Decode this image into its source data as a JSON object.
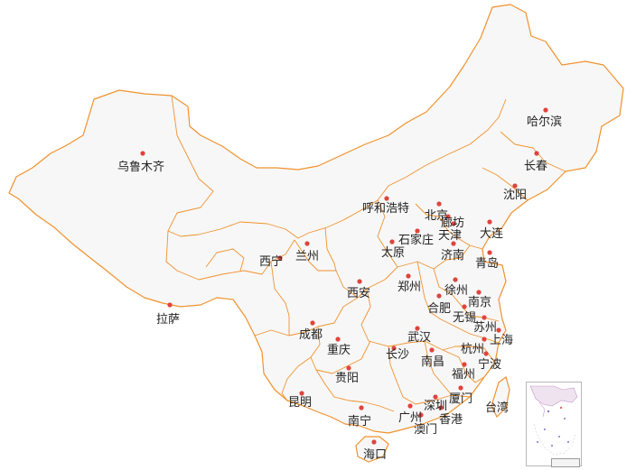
{
  "colors": {
    "land": "#f7f7f7",
    "border": "#f0922e",
    "city_dot": "#e0443e",
    "label": "#222222"
  },
  "cities": [
    {
      "id": "harbin",
      "label": "哈尔滨"
    },
    {
      "id": "changchun",
      "label": "长春"
    },
    {
      "id": "shenyang",
      "label": "沈阳"
    },
    {
      "id": "urumqi",
      "label": "乌鲁木齐"
    },
    {
      "id": "hohhot",
      "label": "呼和浩特"
    },
    {
      "id": "beijing",
      "label": "北京"
    },
    {
      "id": "langfang",
      "label": "廊坊"
    },
    {
      "id": "tianjin",
      "label": "天津"
    },
    {
      "id": "shijiazhuang",
      "label": "石家庄"
    },
    {
      "id": "dalian",
      "label": "大连"
    },
    {
      "id": "taiyuan",
      "label": "太原"
    },
    {
      "id": "jinan",
      "label": "济南"
    },
    {
      "id": "qingdao",
      "label": "青岛"
    },
    {
      "id": "xining",
      "label": "西宁"
    },
    {
      "id": "lanzhou",
      "label": "兰州"
    },
    {
      "id": "xian",
      "label": "西安"
    },
    {
      "id": "zhengzhou",
      "label": "郑州"
    },
    {
      "id": "xuzhou",
      "label": "徐州"
    },
    {
      "id": "nanjing",
      "label": "南京"
    },
    {
      "id": "hefei",
      "label": "合肥"
    },
    {
      "id": "wuxi",
      "label": "无锡"
    },
    {
      "id": "suzhou",
      "label": "苏州"
    },
    {
      "id": "shanghai",
      "label": "上海"
    },
    {
      "id": "lhasa",
      "label": "拉萨"
    },
    {
      "id": "chengdu",
      "label": "成都"
    },
    {
      "id": "chongqing",
      "label": "重庆"
    },
    {
      "id": "wuhan",
      "label": "武汉"
    },
    {
      "id": "changsha",
      "label": "长沙"
    },
    {
      "id": "nanchang",
      "label": "南昌"
    },
    {
      "id": "hangzhou",
      "label": "杭州"
    },
    {
      "id": "ningbo",
      "label": "宁波"
    },
    {
      "id": "guiyang",
      "label": "贵阳"
    },
    {
      "id": "fuzhou",
      "label": "福州"
    },
    {
      "id": "kunming",
      "label": "昆明"
    },
    {
      "id": "xiamen",
      "label": "厦门"
    },
    {
      "id": "shenzhen",
      "label": "深圳"
    },
    {
      "id": "guangzhou",
      "label": "广州"
    },
    {
      "id": "hongkong",
      "label": "香港"
    },
    {
      "id": "macau",
      "label": "澳门"
    },
    {
      "id": "nanning",
      "label": "南宁"
    },
    {
      "id": "taiwan",
      "label": "台湾"
    },
    {
      "id": "haikou",
      "label": "海口"
    }
  ]
}
